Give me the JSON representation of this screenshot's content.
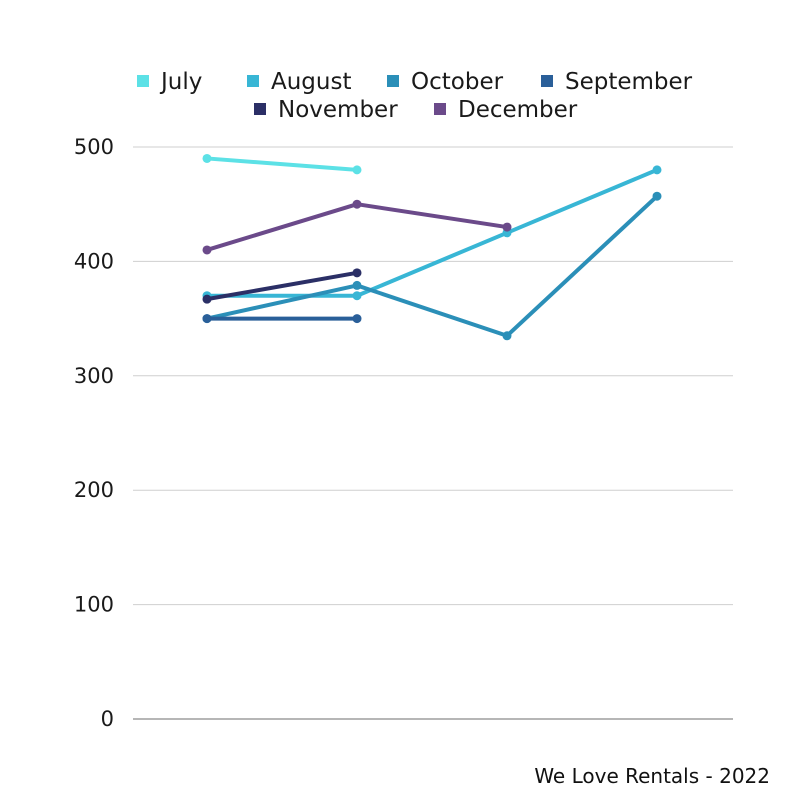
{
  "footer": {
    "caption": "We Love Rentals - 2022"
  },
  "chart_data": {
    "type": "line",
    "title": "",
    "xlabel": "",
    "ylabel": "",
    "ylim": [
      0,
      500
    ],
    "y_ticks": [
      0,
      100,
      200,
      300,
      400,
      500
    ],
    "x_points": 4,
    "grid": true,
    "legend_position": "top",
    "series": [
      {
        "name": "July",
        "color": "#5ce1e6",
        "values": [
          490,
          480,
          null,
          null
        ]
      },
      {
        "name": "August",
        "color": "#38b6d5",
        "values": [
          370,
          370,
          425,
          480
        ]
      },
      {
        "name": "October",
        "color": "#2b8fb8",
        "values": [
          350,
          379,
          335,
          457
        ]
      },
      {
        "name": "September",
        "color": "#2a5f99",
        "values": [
          350,
          350,
          null,
          null
        ]
      },
      {
        "name": "November",
        "color": "#2b2f66",
        "values": [
          367,
          390,
          null,
          null
        ]
      },
      {
        "name": "December",
        "color": "#6b4a8a",
        "values": [
          410,
          450,
          430,
          null
        ]
      }
    ]
  }
}
